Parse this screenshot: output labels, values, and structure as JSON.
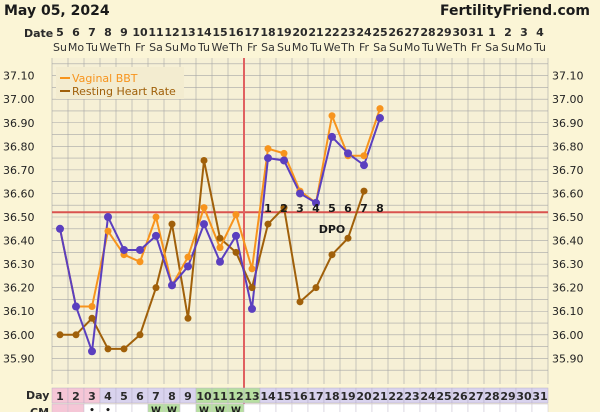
{
  "header": {
    "date": "May 05, 2024",
    "site": "FertilityFriend.com"
  },
  "colors": {
    "background": "#fbf5d6",
    "temp_band": "#f6f0d6",
    "grid": "#a6a6a6",
    "bbt": "#f7941d",
    "rhr": "#a0600a",
    "dots": "#5b3fbf",
    "coverline": "#d9534f",
    "ovulation_line": "#e06060",
    "day_pink": "#f5c6d6",
    "day_lav": "#d9d3ee",
    "day_green": "#b7dfa1"
  },
  "chart_data": {
    "type": "line",
    "date_row_label": "Date",
    "date_numbers": [
      "5",
      "6",
      "7",
      "8",
      "9",
      "10",
      "11",
      "12",
      "13",
      "14",
      "15",
      "16",
      "17",
      "18",
      "19",
      "20",
      "21",
      "22",
      "23",
      "24",
      "25",
      "26",
      "27",
      "28",
      "29",
      "30",
      "31",
      "1",
      "2",
      "3",
      "4"
    ],
    "weekdays": [
      "Su",
      "Mo",
      "Tu",
      "We",
      "Th",
      "Fr",
      "Sa",
      "Su",
      "Mo",
      "Tu",
      "We",
      "Th",
      "Fr",
      "Sa",
      "Su",
      "Mo",
      "Tu",
      "We",
      "Th",
      "Fr",
      "Sa",
      "Su",
      "Mo",
      "Tu",
      "We",
      "Th",
      "Fr",
      "Sa",
      "Su",
      "Mo",
      "Tu"
    ],
    "y_ticks": [
      "37.10",
      "37.00",
      "36.90",
      "36.80",
      "36.70",
      "36.60",
      "36.50",
      "36.40",
      "36.30",
      "36.20",
      "36.10",
      "36.00",
      "35.90"
    ],
    "ylim": [
      35.85,
      37.15
    ],
    "legend": [
      "Vaginal BBT",
      "Resting Heart Rate"
    ],
    "series": [
      {
        "name": "Vaginal BBT",
        "x": [
          1,
          2,
          3,
          4,
          5,
          6,
          7,
          8,
          9,
          10,
          11,
          12,
          13,
          14,
          15,
          16,
          17,
          18,
          19,
          20,
          21
        ],
        "values": [
          36.45,
          36.12,
          36.12,
          36.44,
          36.34,
          36.31,
          36.5,
          36.21,
          36.33,
          36.54,
          36.37,
          36.51,
          36.28,
          36.79,
          36.77,
          36.61,
          36.56,
          36.93,
          36.76,
          36.76,
          36.96
        ]
      },
      {
        "name": "Resting Heart Rate",
        "x": [
          1,
          2,
          3,
          4,
          5,
          6,
          7,
          8,
          9,
          10,
          11,
          12,
          13,
          14,
          15,
          16,
          17,
          18,
          19,
          20
        ],
        "values": [
          36.0,
          36.0,
          36.07,
          35.94,
          35.94,
          36.0,
          36.2,
          36.47,
          36.07,
          36.74,
          36.41,
          36.35,
          36.2,
          36.47,
          36.54,
          36.14,
          36.2,
          36.34,
          36.41,
          36.61
        ]
      },
      {
        "name": "",
        "x": [
          1,
          2,
          3,
          4,
          5,
          6,
          7,
          8,
          9,
          10,
          11,
          12,
          13,
          14,
          15,
          16,
          17,
          18,
          19,
          20,
          21
        ],
        "values": [
          36.45,
          36.12,
          35.93,
          36.5,
          36.36,
          36.36,
          36.42,
          36.21,
          36.29,
          36.47,
          36.31,
          36.42,
          36.11,
          36.75,
          36.74,
          36.6,
          36.56,
          36.84,
          36.77,
          36.72,
          36.92
        ]
      }
    ],
    "coverline": 36.52,
    "ovulation_day": 13,
    "dpo_label": "DPO",
    "dpo_numbers": [
      "1",
      "2",
      "3",
      "4",
      "5",
      "6",
      "7",
      "8"
    ],
    "dpo_start_day": 14,
    "day_row_label": "Day",
    "days": [
      "1",
      "2",
      "3",
      "4",
      "5",
      "6",
      "7",
      "8",
      "9",
      "10",
      "11",
      "12",
      "13",
      "14",
      "15",
      "16",
      "17",
      "18",
      "19",
      "20",
      "21",
      "22",
      "23",
      "24",
      "25",
      "26",
      "27",
      "28",
      "29",
      "30",
      "31"
    ],
    "cm_row_label": "CM",
    "cm_marks": [
      "",
      "",
      "•",
      "•",
      "",
      "",
      "W",
      "W",
      "",
      "W",
      "W",
      "W",
      "",
      "",
      "",
      "",
      "",
      "",
      "",
      "",
      "",
      "",
      "",
      "",
      "",
      "",
      "",
      "",
      "",
      "",
      ""
    ]
  }
}
